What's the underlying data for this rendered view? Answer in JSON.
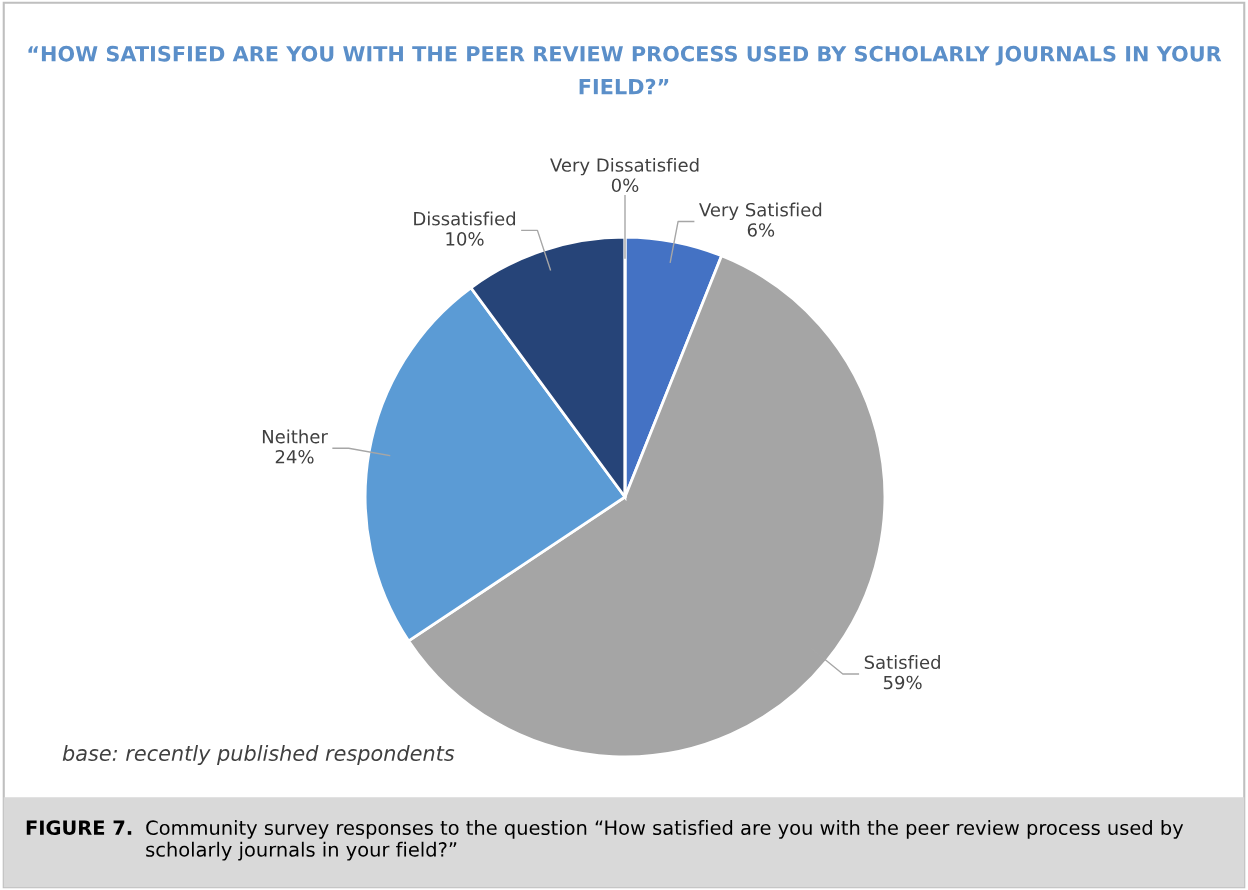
{
  "chart_data": {
    "type": "pie",
    "title": "“HOW SATISFIED ARE YOU WITH THE PEER REVIEW PROCESS USED BY SCHOLARLY JOURNALS IN YOUR FIELD?”",
    "categories": [
      "Very Satisfied",
      "Satisfied",
      "Neither",
      "Dissatisfied",
      "Very Dissatisfied"
    ],
    "values": [
      6,
      59,
      24,
      10,
      0
    ],
    "colors": [
      "#4472c4",
      "#a5a5a5",
      "#5b9bd5",
      "#264478",
      "#9e480e"
    ],
    "value_labels": [
      "6%",
      "59%",
      "24%",
      "10%",
      "0%"
    ],
    "annotations": [
      "base: recently published respondents",
      "FIGURE 7.",
      "Community survey responses to the question “How satisfied are you with the peer review process used by scholarly journals in your field?”"
    ]
  }
}
